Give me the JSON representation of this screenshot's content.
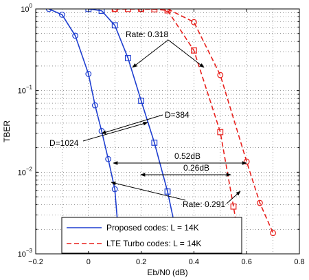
{
  "chart_data": {
    "type": "line",
    "xlabel": "Eb/N0 (dB)",
    "ylabel": "TBER",
    "xlim": [
      -0.2,
      0.8
    ],
    "ylim": [
      0.001,
      1
    ],
    "y_scale": "log",
    "grid": true,
    "legend_position": "bottom-center",
    "x_ticks": [
      -0.2,
      0,
      0.2,
      0.4,
      0.6,
      0.8
    ],
    "x_tick_labels": [
      "−0.2",
      "0",
      "0.2",
      "0.4",
      "0.6",
      "0.8"
    ],
    "y_ticks": [
      {
        "value": 1,
        "base": "10",
        "exp": "0"
      },
      {
        "value": 0.1,
        "base": "10",
        "exp": "−1"
      },
      {
        "value": 0.01,
        "base": "10",
        "exp": "−2"
      },
      {
        "value": 0.001,
        "base": "10",
        "exp": "−3"
      }
    ],
    "series": [
      {
        "name": "Proposed codes: L = 14K",
        "group": "proposed",
        "color": "#1f3fd0",
        "dash": "solid",
        "marker": "circle",
        "x": [
          -0.15,
          -0.1,
          -0.05,
          0.0,
          0.025,
          0.05,
          0.075,
          0.1,
          0.12
        ],
        "y": [
          1.0,
          0.85,
          0.47,
          0.16,
          0.066,
          0.032,
          0.0145,
          0.0062,
          0.001
        ]
      },
      {
        "name": "",
        "group": "proposed",
        "color": "#1f3fd0",
        "dash": "solid",
        "marker": "square",
        "x": [
          0.0,
          0.05,
          0.1,
          0.15,
          0.2,
          0.25,
          0.3,
          0.35
        ],
        "y": [
          1.0,
          0.95,
          0.63,
          0.25,
          0.075,
          0.023,
          0.0058,
          0.001
        ]
      },
      {
        "name": "LTE Turbo codes: L = 14K",
        "group": "lte",
        "color": "#e8201c",
        "dash": "dashed",
        "marker": "square",
        "x": [
          0.1,
          0.15,
          0.2,
          0.25,
          0.3,
          0.4,
          0.5,
          0.55,
          0.58
        ],
        "y": [
          1.0,
          1.0,
          1.0,
          0.99,
          0.96,
          0.31,
          0.031,
          0.0038,
          0.001
        ]
      },
      {
        "name": "",
        "group": "lte",
        "color": "#e8201c",
        "dash": "dashed",
        "marker": "circle",
        "x": [
          0.1,
          0.2,
          0.3,
          0.4,
          0.5,
          0.6,
          0.65,
          0.7
        ],
        "y": [
          1.0,
          1.0,
          1.0,
          0.69,
          0.155,
          0.0135,
          0.0042,
          0.0018
        ]
      }
    ],
    "annotations": [
      {
        "text": "Rate: 0.318"
      },
      {
        "text": "D=384"
      },
      {
        "text": "D=1024"
      },
      {
        "text": "0.52dB"
      },
      {
        "text": "0.26dB"
      },
      {
        "text": "Rate: 0.291"
      }
    ]
  }
}
